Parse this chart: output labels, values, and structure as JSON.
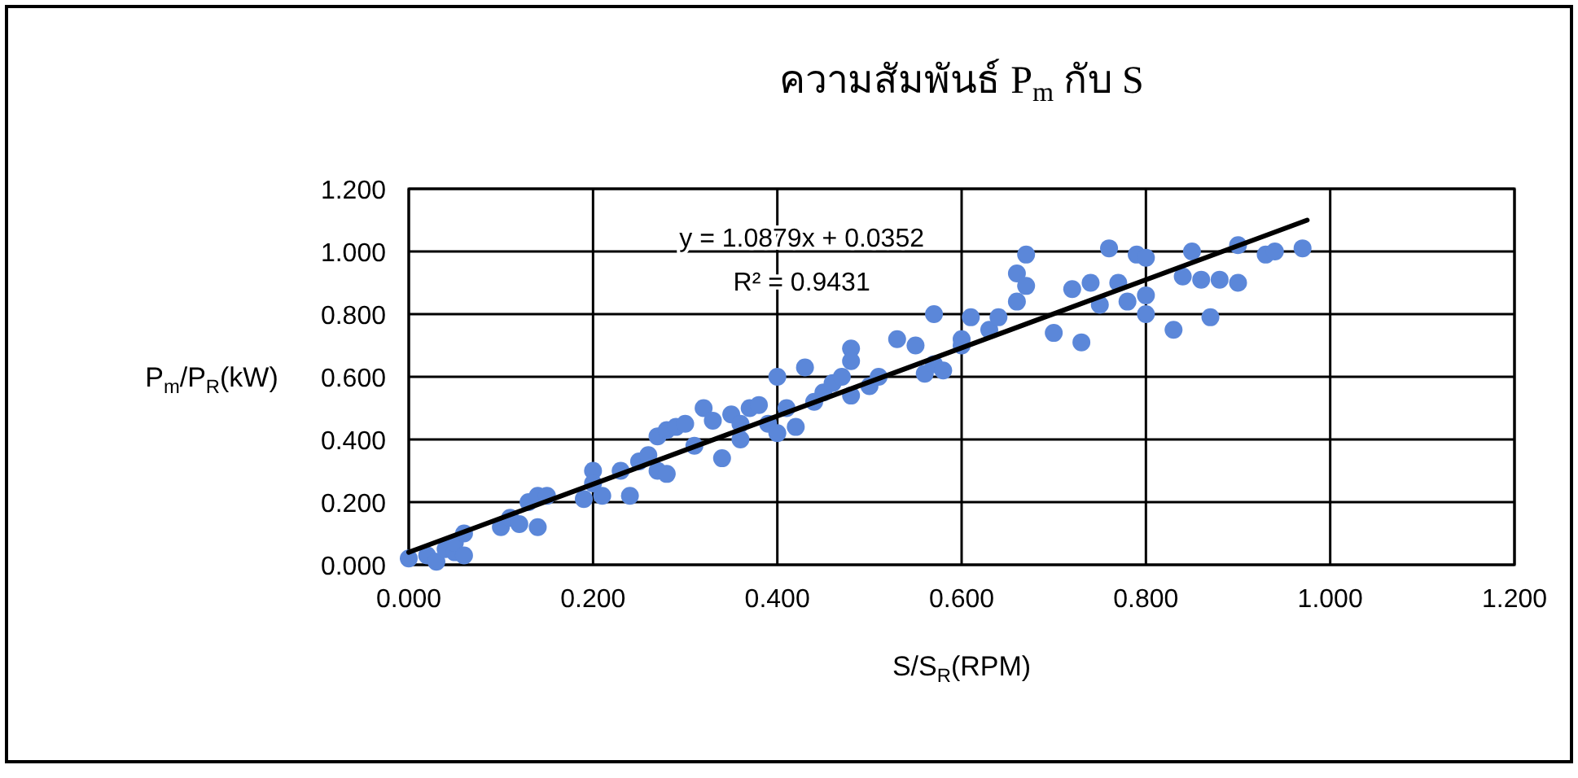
{
  "chart_data": {
    "type": "scatter",
    "title": "ความสัมพันธ์ P$_{m}$ กับ S",
    "xlabel": "S/S$_{R}$(RPM)",
    "ylabel": "P$_{m}$/P$_{R}$(kW)",
    "xlim": [
      0,
      1.2
    ],
    "ylim": [
      0,
      1.2
    ],
    "xticks": [
      {
        "value": 0,
        "label": "0.000"
      },
      {
        "value": 0.2,
        "label": "0.200"
      },
      {
        "value": 0.4,
        "label": "0.400"
      },
      {
        "value": 0.6,
        "label": "0.600"
      },
      {
        "value": 0.8,
        "label": "0.800"
      },
      {
        "value": 1,
        "label": "1.000"
      },
      {
        "value": 1.2,
        "label": "1.200"
      }
    ],
    "yticks": [
      {
        "value": 0,
        "label": "0.000"
      },
      {
        "value": 0.2,
        "label": "0.200"
      },
      {
        "value": 0.4,
        "label": "0.400"
      },
      {
        "value": 0.6,
        "label": "0.600"
      },
      {
        "value": 0.8,
        "label": "0.800"
      },
      {
        "value": 1,
        "label": "1.000"
      },
      {
        "value": 1.2,
        "label": "1.200"
      }
    ],
    "grid": true,
    "annotations": [
      "y = 1.0879x + 0.0352",
      "R² = 0.9431"
    ],
    "series": [
      {
        "marker": "circle",
        "color": "#5b87d9",
        "x": [
          0.0,
          0.02,
          0.03,
          0.04,
          0.05,
          0.05,
          0.06,
          0.06,
          0.1,
          0.11,
          0.12,
          0.13,
          0.14,
          0.14,
          0.15,
          0.19,
          0.2,
          0.2,
          0.21,
          0.23,
          0.24,
          0.25,
          0.26,
          0.27,
          0.27,
          0.28,
          0.28,
          0.29,
          0.3,
          0.31,
          0.32,
          0.33,
          0.34,
          0.35,
          0.36,
          0.36,
          0.37,
          0.38,
          0.39,
          0.4,
          0.4,
          0.41,
          0.42,
          0.43,
          0.44,
          0.45,
          0.46,
          0.47,
          0.48,
          0.48,
          0.48,
          0.5,
          0.51,
          0.53,
          0.55,
          0.56,
          0.57,
          0.57,
          0.58,
          0.6,
          0.6,
          0.61,
          0.63,
          0.64,
          0.66,
          0.66,
          0.67,
          0.67,
          0.7,
          0.72,
          0.73,
          0.74,
          0.75,
          0.76,
          0.77,
          0.78,
          0.79,
          0.8,
          0.8,
          0.8,
          0.83,
          0.84,
          0.85,
          0.86,
          0.87,
          0.88,
          0.9,
          0.9,
          0.93,
          0.94,
          0.97
        ],
        "values": [
          0.02,
          0.03,
          0.01,
          0.05,
          0.04,
          0.07,
          0.1,
          0.03,
          0.12,
          0.15,
          0.13,
          0.2,
          0.22,
          0.12,
          0.22,
          0.21,
          0.3,
          0.26,
          0.22,
          0.3,
          0.22,
          0.33,
          0.35,
          0.3,
          0.41,
          0.43,
          0.29,
          0.44,
          0.45,
          0.38,
          0.5,
          0.46,
          0.34,
          0.48,
          0.45,
          0.4,
          0.5,
          0.51,
          0.45,
          0.6,
          0.42,
          0.5,
          0.44,
          0.63,
          0.52,
          0.55,
          0.58,
          0.6,
          0.69,
          0.65,
          0.54,
          0.57,
          0.6,
          0.72,
          0.7,
          0.61,
          0.8,
          0.64,
          0.62,
          0.72,
          0.7,
          0.79,
          0.75,
          0.79,
          0.84,
          0.93,
          0.99,
          0.89,
          0.74,
          0.88,
          0.71,
          0.9,
          0.83,
          1.01,
          0.9,
          0.84,
          0.99,
          0.98,
          0.8,
          0.86,
          0.75,
          0.92,
          1.0,
          0.91,
          0.79,
          0.91,
          1.02,
          0.9,
          0.99,
          1.0,
          1.01
        ]
      },
      {
        "type": "line",
        "color": "#000000",
        "x": [
          0,
          0.975
        ],
        "values": [
          0.04,
          1.1
        ]
      }
    ]
  }
}
